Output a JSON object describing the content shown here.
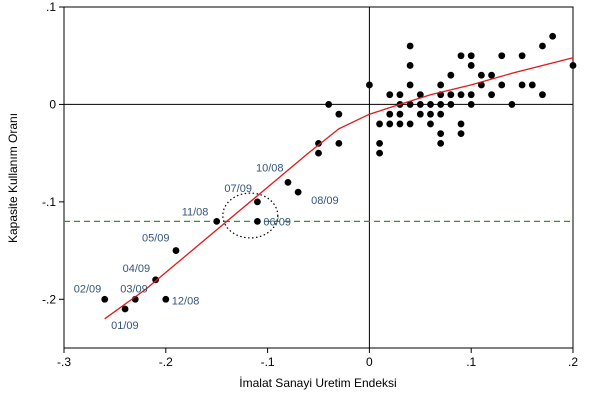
{
  "chart_data": {
    "type": "scatter",
    "title": "",
    "xlabel": "İmalat Sanayi Uretim Endeksi",
    "ylabel": "Kapasite Kullanım Oranı",
    "xlim": [
      -0.3,
      0.2
    ],
    "ylim": [
      -0.25,
      0.1
    ],
    "x_ticks": [
      -0.3,
      -0.2,
      -0.1,
      0,
      0.1,
      0.2
    ],
    "x_tick_labels": [
      "-.3",
      "-.2",
      "-.1",
      "0",
      ".1",
      ".2"
    ],
    "y_ticks": [
      -0.2,
      -0.1,
      0,
      0.1
    ],
    "y_tick_labels": [
      "-.2",
      "-.1",
      "0",
      ".1"
    ],
    "grid": false,
    "reference_lines": {
      "zero_x": 0,
      "zero_y": 0,
      "dashed_y": -0.12,
      "dashed_color": "#2a9a2a"
    },
    "colors": {
      "points": "#000000",
      "fit_line": "#e01818",
      "annotation_text": "#33557a"
    },
    "fit_line": {
      "x": [
        -0.26,
        -0.22,
        -0.18,
        -0.14,
        -0.1,
        -0.06,
        -0.03,
        0,
        0.03,
        0.06,
        0.1,
        0.14,
        0.2
      ],
      "y": [
        -0.22,
        -0.19,
        -0.155,
        -0.12,
        -0.085,
        -0.05,
        -0.025,
        -0.01,
        0.0,
        0.01,
        0.02,
        0.032,
        0.048
      ]
    },
    "highlight_circle": {
      "x": -0.117,
      "y": -0.114,
      "radius_x": 0.027,
      "radius_y": 0.023
    },
    "labeled_points": [
      {
        "label": "02/09",
        "x": -0.26,
        "y": -0.2
      },
      {
        "label": "01/09",
        "x": -0.24,
        "y": -0.21
      },
      {
        "label": "03/09",
        "x": -0.23,
        "y": -0.2
      },
      {
        "label": "04/09",
        "x": -0.21,
        "y": -0.18
      },
      {
        "label": "12/08",
        "x": -0.2,
        "y": -0.2
      },
      {
        "label": "05/09",
        "x": -0.19,
        "y": -0.15
      },
      {
        "label": "11/08",
        "x": -0.15,
        "y": -0.12
      },
      {
        "label": "07/09",
        "x": -0.11,
        "y": -0.1
      },
      {
        "label": "06/09",
        "x": -0.11,
        "y": -0.12
      },
      {
        "label": "10/08",
        "x": -0.08,
        "y": -0.08
      },
      {
        "label": "08/09",
        "x": -0.07,
        "y": -0.09
      }
    ],
    "points": [
      [
        -0.05,
        -0.05
      ],
      [
        -0.05,
        -0.04
      ],
      [
        -0.04,
        0.0
      ],
      [
        -0.03,
        -0.01
      ],
      [
        -0.03,
        -0.04
      ],
      [
        0.0,
        0.02
      ],
      [
        0.01,
        -0.02
      ],
      [
        0.01,
        -0.04
      ],
      [
        0.01,
        -0.05
      ],
      [
        0.02,
        0.01
      ],
      [
        0.02,
        -0.01
      ],
      [
        0.02,
        -0.02
      ],
      [
        0.03,
        0.0
      ],
      [
        0.03,
        0.01
      ],
      [
        0.03,
        -0.01
      ],
      [
        0.03,
        -0.02
      ],
      [
        0.04,
        0.06
      ],
      [
        0.04,
        0.04
      ],
      [
        0.04,
        0.02
      ],
      [
        0.04,
        0.0
      ],
      [
        0.04,
        -0.02
      ],
      [
        0.05,
        0.0
      ],
      [
        0.05,
        -0.01
      ],
      [
        0.05,
        0.01
      ],
      [
        0.06,
        0.0
      ],
      [
        0.06,
        -0.01
      ],
      [
        0.06,
        -0.02
      ],
      [
        0.07,
        0.02
      ],
      [
        0.07,
        0.01
      ],
      [
        0.07,
        0.0
      ],
      [
        0.07,
        -0.01
      ],
      [
        0.07,
        -0.03
      ],
      [
        0.07,
        -0.04
      ],
      [
        0.08,
        0.03
      ],
      [
        0.08,
        0.01
      ],
      [
        0.08,
        0.0
      ],
      [
        0.09,
        0.05
      ],
      [
        0.09,
        0.01
      ],
      [
        0.09,
        -0.02
      ],
      [
        0.09,
        -0.03
      ],
      [
        0.1,
        0.05
      ],
      [
        0.1,
        0.04
      ],
      [
        0.1,
        0.01
      ],
      [
        0.1,
        0.0
      ],
      [
        0.11,
        0.03
      ],
      [
        0.11,
        0.02
      ],
      [
        0.12,
        0.03
      ],
      [
        0.12,
        0.01
      ],
      [
        0.13,
        0.05
      ],
      [
        0.13,
        0.02
      ],
      [
        0.14,
        0.0
      ],
      [
        0.15,
        0.05
      ],
      [
        0.15,
        0.02
      ],
      [
        0.16,
        0.02
      ],
      [
        0.17,
        0.06
      ],
      [
        0.17,
        0.01
      ],
      [
        0.18,
        0.07
      ],
      [
        0.2,
        0.04
      ]
    ]
  }
}
